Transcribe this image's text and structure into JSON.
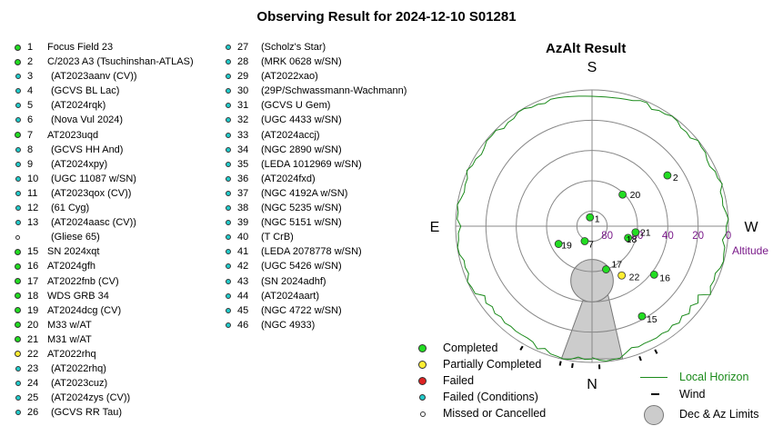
{
  "title": "Observing Result for 2024-12-10 S01281",
  "colors": {
    "completed": "#22dd22",
    "partial": "#ffee33",
    "failed": "#dd2222",
    "failed_conditions": "#22cccc",
    "missed": "#ffffff",
    "horizon": "#1a8a1a",
    "limits_fill": "#cccccc",
    "altitude_label": "#7a1a8a"
  },
  "targets": [
    {
      "num": "1",
      "name": "Focus Field 23",
      "status": "completed"
    },
    {
      "num": "2",
      "name": "C/2023 A3 (Tsuchinshan-ATLAS)",
      "status": "completed"
    },
    {
      "num": "3",
      "name": "(AT2023aanv (CV))",
      "status": "failed_conditions"
    },
    {
      "num": "4",
      "name": "(GCVS BL Lac)",
      "status": "failed_conditions"
    },
    {
      "num": "5",
      "name": "(AT2024rqk)",
      "status": "failed_conditions"
    },
    {
      "num": "6",
      "name": "(Nova Vul 2024)",
      "status": "failed_conditions"
    },
    {
      "num": "7",
      "name": "AT2023uqd",
      "status": "completed"
    },
    {
      "num": "8",
      "name": "(GCVS HH And)",
      "status": "failed_conditions"
    },
    {
      "num": "9",
      "name": "(AT2024xpy)",
      "status": "failed_conditions"
    },
    {
      "num": "10",
      "name": "(UGC 11087 w/SN)",
      "status": "failed_conditions"
    },
    {
      "num": "11",
      "name": "(AT2023qox (CV))",
      "status": "failed_conditions"
    },
    {
      "num": "12",
      "name": "(61 Cyg)",
      "status": "failed_conditions"
    },
    {
      "num": "13",
      "name": "(AT2024aasc (CV))",
      "status": "failed_conditions"
    },
    {
      "num": "",
      "name": "(Gliese 65)",
      "status": "missed"
    },
    {
      "num": "15",
      "name": "SN 2024xqt",
      "status": "completed"
    },
    {
      "num": "16",
      "name": "AT2024gfh",
      "status": "completed"
    },
    {
      "num": "17",
      "name": "AT2022fnb (CV)",
      "status": "completed"
    },
    {
      "num": "18",
      "name": "WDS GRB 34",
      "status": "completed"
    },
    {
      "num": "19",
      "name": "AT2024dcg (CV)",
      "status": "completed"
    },
    {
      "num": "20",
      "name": "M33 w/AT",
      "status": "completed"
    },
    {
      "num": "21",
      "name": "M31 w/AT",
      "status": "completed"
    },
    {
      "num": "22",
      "name": "AT2022rhq",
      "status": "partial"
    },
    {
      "num": "23",
      "name": "(AT2022rhq)",
      "status": "failed_conditions"
    },
    {
      "num": "24",
      "name": "(AT2023cuz)",
      "status": "failed_conditions"
    },
    {
      "num": "25",
      "name": "(AT2024zys (CV))",
      "status": "failed_conditions"
    },
    {
      "num": "26",
      "name": "(GCVS RR Tau)",
      "status": "failed_conditions"
    },
    {
      "num": "27",
      "name": "(Scholz's Star)",
      "status": "failed_conditions"
    },
    {
      "num": "28",
      "name": "(MRK 0628 w/SN)",
      "status": "failed_conditions"
    },
    {
      "num": "29",
      "name": "(AT2022xao)",
      "status": "failed_conditions"
    },
    {
      "num": "30",
      "name": "(29P/Schwassmann-Wachmann)",
      "status": "failed_conditions"
    },
    {
      "num": "31",
      "name": "(GCVS U Gem)",
      "status": "failed_conditions"
    },
    {
      "num": "32",
      "name": "(UGC 4433 w/SN)",
      "status": "failed_conditions"
    },
    {
      "num": "33",
      "name": "(AT2024accj)",
      "status": "failed_conditions"
    },
    {
      "num": "34",
      "name": "(NGC 2890 w/SN)",
      "status": "failed_conditions"
    },
    {
      "num": "35",
      "name": "(LEDA 1012969 w/SN)",
      "status": "failed_conditions"
    },
    {
      "num": "36",
      "name": "(AT2024fxd)",
      "status": "failed_conditions"
    },
    {
      "num": "37",
      "name": "(NGC 4192A w/SN)",
      "status": "failed_conditions"
    },
    {
      "num": "38",
      "name": "(NGC 5235 w/SN)",
      "status": "failed_conditions"
    },
    {
      "num": "39",
      "name": "(NGC 5151 w/SN)",
      "status": "failed_conditions"
    },
    {
      "num": "40",
      "name": "(T CrB)",
      "status": "failed_conditions"
    },
    {
      "num": "41",
      "name": "(LEDA 2078778 w/SN)",
      "status": "failed_conditions"
    },
    {
      "num": "42",
      "name": "(UGC 5426 w/SN)",
      "status": "failed_conditions"
    },
    {
      "num": "43",
      "name": "(SN 2024adhf)",
      "status": "failed_conditions"
    },
    {
      "num": "44",
      "name": "(AT2024aart)",
      "status": "failed_conditions"
    },
    {
      "num": "45",
      "name": "(NGC 4722 w/SN)",
      "status": "failed_conditions"
    },
    {
      "num": "46",
      "name": "(NGC 4933)",
      "status": "failed_conditions"
    }
  ],
  "chart_data": {
    "type": "scatter",
    "title": "AzAlt Result",
    "projection": "polar azimuth/altitude, S at top, E at left",
    "directions": {
      "top": "S",
      "left": "E",
      "right": "W",
      "bottom": "N"
    },
    "altitude_label": "Altitude",
    "altitude_ticks": [
      "0",
      "20",
      "40",
      "60",
      "80"
    ],
    "altitude_tick_values": [
      0,
      20,
      40,
      60,
      80
    ],
    "altitude_range": [
      0,
      90
    ],
    "points": [
      {
        "label": "1",
        "status": "completed",
        "az": 167,
        "alt": 84
      },
      {
        "label": "2",
        "status": "completed",
        "az": 236,
        "alt": 30
      },
      {
        "label": "7",
        "status": "completed",
        "az": 26,
        "alt": 79
      },
      {
        "label": "15",
        "status": "completed",
        "az": 331,
        "alt": 22
      },
      {
        "label": "16",
        "status": "completed",
        "az": 308,
        "alt": 38
      },
      {
        "label": "17",
        "status": "completed",
        "az": 342,
        "alt": 60
      },
      {
        "label": "18",
        "status": "completed",
        "az": 288,
        "alt": 65
      },
      {
        "label": "19",
        "status": "completed",
        "az": 62,
        "alt": 65
      },
      {
        "label": "20",
        "status": "completed",
        "az": 224,
        "alt": 61
      },
      {
        "label": "21",
        "status": "completed",
        "az": 278,
        "alt": 61
      },
      {
        "label": "22",
        "status": "partial",
        "az": 329,
        "alt": 52
      }
    ],
    "limits": {
      "description": "Dec & Az Limits",
      "circle_center": {
        "az": 0,
        "alt": 54
      },
      "circle_radius_deg": 14,
      "wedge_az": [
        -13,
        13
      ]
    },
    "wind_ticks_az": [
      357,
      333,
      340,
      8,
      13,
      30
    ],
    "legend": [
      "Completed",
      "Partially Completed",
      "Failed",
      "Failed (Conditions)",
      "Missed or Cancelled",
      "Local Horizon",
      "Wind",
      "Dec & Az Limits"
    ],
    "legend_placement": "bottom-right",
    "grid": true
  },
  "legend": {
    "completed": "Completed",
    "partial": "Partially Completed",
    "failed": "Failed",
    "failed_conditions": "Failed (Conditions)",
    "missed": "Missed or Cancelled",
    "horizon": "Local Horizon",
    "wind": "Wind",
    "limits": "Dec & Az Limits"
  }
}
